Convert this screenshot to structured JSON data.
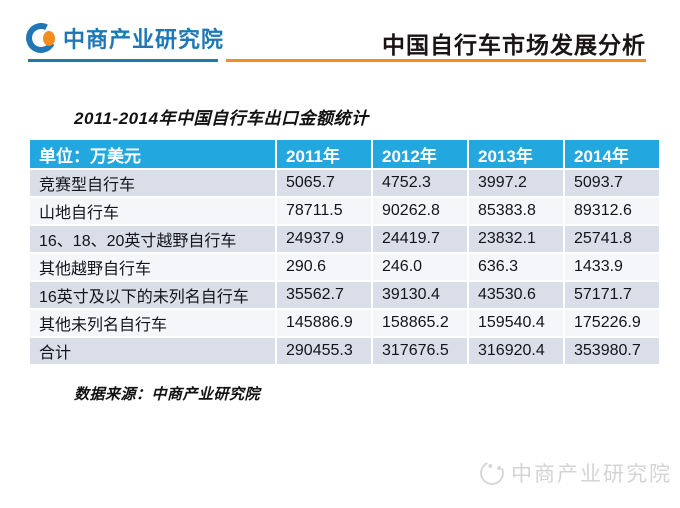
{
  "header": {
    "logo_text": "中商产业研究院",
    "title": "中国自行车市场发展分析",
    "colors": {
      "logo_blue": "#1e78b8",
      "divider_blue": "#2478a8",
      "divider_orange": "#f68b1e",
      "title_color": "#1a1414"
    }
  },
  "main": {
    "table_title": "2011-2014年中国自行车出口金额统计",
    "source_note": "数据来源：中商产业研究院"
  },
  "table": {
    "unit_label": "单位：万美元",
    "year_columns": [
      "2011年",
      "2012年",
      "2013年",
      "2014年"
    ],
    "rows": [
      {
        "label": "竞赛型自行车",
        "values": [
          "5065.7",
          "4752.3",
          "3997.2",
          "5093.7"
        ]
      },
      {
        "label": "山地自行车",
        "values": [
          "78711.5",
          "90262.8",
          "85383.8",
          "89312.6"
        ]
      },
      {
        "label": "16、18、20英寸越野自行车",
        "values": [
          "24937.9",
          "24419.7",
          "23832.1",
          "25741.8"
        ]
      },
      {
        "label": "其他越野自行车",
        "values": [
          "290.6",
          "246.0",
          "636.3",
          "1433.9"
        ]
      },
      {
        "label": "16英寸及以下的未列名自行车",
        "values": [
          "35562.7",
          "39130.4",
          "43530.6",
          "57171.7"
        ]
      },
      {
        "label": "其他未列名自行车",
        "values": [
          "145886.9",
          "158865.2",
          "159540.4",
          "175226.9"
        ]
      },
      {
        "label": "合计",
        "values": [
          "290455.3",
          "317676.5",
          "316920.4",
          "353980.7"
        ]
      }
    ],
    "colors": {
      "header_bg": "#23a7df",
      "header_text": "#ffffff",
      "band_a_bg": "#d9dee8",
      "band_b_bg": "#f4f6f9"
    }
  },
  "watermark": {
    "text": "中商产业研究院",
    "color": "#d4d4d4"
  }
}
